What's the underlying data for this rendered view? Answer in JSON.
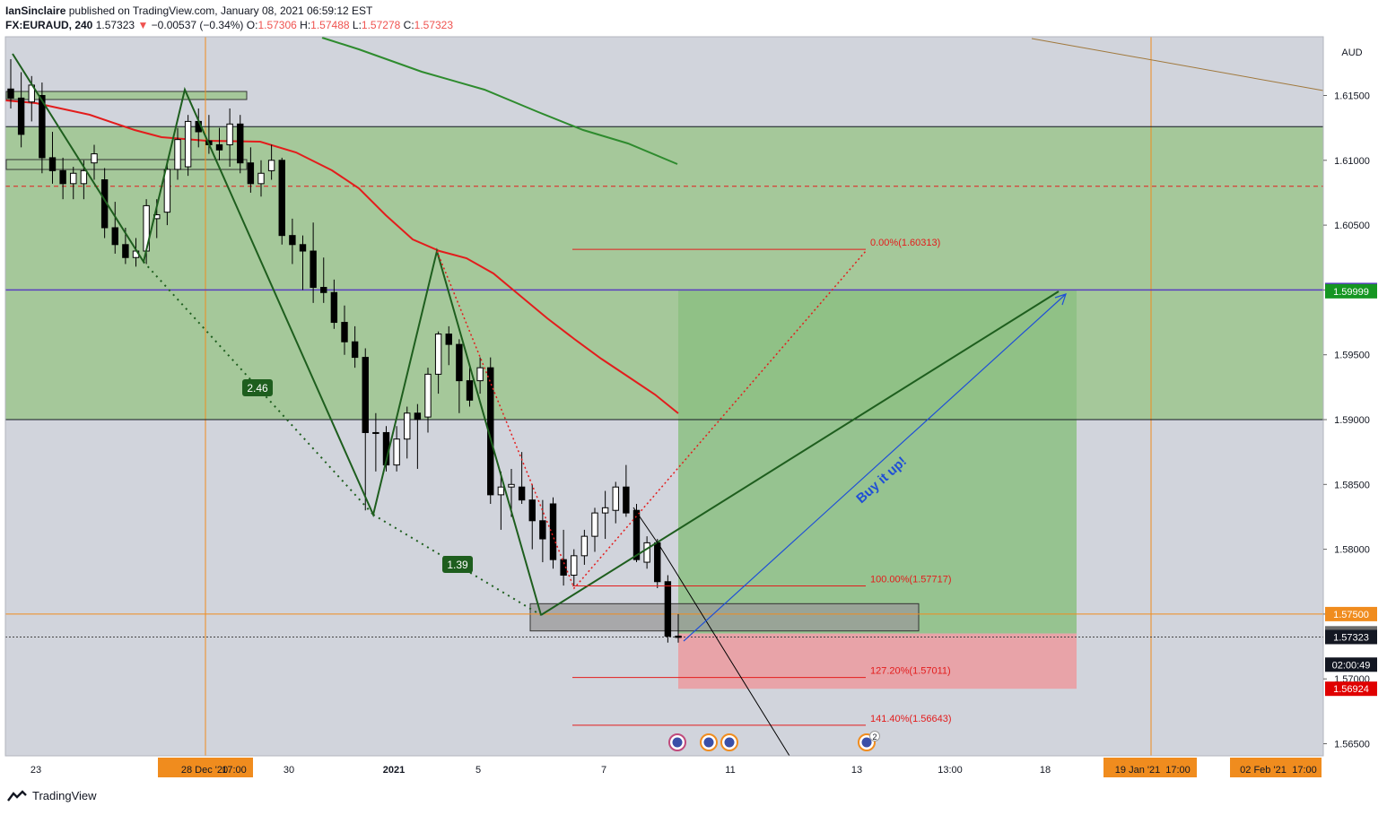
{
  "header": {
    "publisher": "IanSinclaire",
    "published_text": "published on TradingView.com, January 08, 2021 06:59:12 EST",
    "symbol": "FX:EURAUD, 240",
    "last": "1.57323",
    "change_arrow": "▼",
    "change": "−0.00537 (−0.34%)",
    "open_label": "O:",
    "open": "1.57306",
    "high_label": "H:",
    "high": "1.57488",
    "low_label": "L:",
    "low": "1.57278",
    "close_label": "C:",
    "close": "1.57323"
  },
  "footer": {
    "brand": "TradingView"
  },
  "colors": {
    "bg": "#d1d4dc",
    "zone_green": "#a5c89a",
    "target_green": "#8cbf82",
    "stop_red": "#e8a3a8",
    "ma_red": "#e31c1c",
    "ma_green": "#2e8b2e",
    "pattern": "#1e5e1e",
    "blue": "#1f4fd6",
    "orange": "#f08c1e",
    "purple": "#5a3fc0"
  },
  "chart_data": {
    "type": "candlestick",
    "symbol": "EURAUD",
    "timeframe": "240",
    "currency": "AUD",
    "price_axis": {
      "ticks": [
        "1.61500",
        "1.61000",
        "1.60500",
        "1.60000",
        "1.59500",
        "1.59000",
        "1.58500",
        "1.58000",
        "1.57500",
        "1.57000",
        "1.56500"
      ],
      "ylim": [
        1.5633,
        1.6205
      ]
    },
    "time_axis": {
      "ticks": [
        "23",
        "28 Dec '20",
        "17:00",
        "30",
        "2021",
        "5",
        "7",
        "11",
        "13",
        "13:00",
        "18",
        "19 Jan '21",
        "17:00",
        "02 Feb '21",
        "17:00"
      ]
    },
    "price_labels": [
      {
        "text": "1.60000",
        "price": 1.6,
        "color": "#5a3fc0"
      },
      {
        "text": "1.59999",
        "price": 1.5999,
        "color": "#159622"
      },
      {
        "text": "1.57500",
        "price": 1.575,
        "color": "#f08c1e"
      },
      {
        "text": "1.57352",
        "price": 1.57352,
        "color": "#6b6b6b"
      },
      {
        "text": "1.57323",
        "price": 1.57323,
        "color": "#131722"
      },
      {
        "text": "02:00:49",
        "price": 1.5711,
        "color": "#131722"
      },
      {
        "text": "1.56924",
        "price": 1.56924,
        "color": "#e00000"
      }
    ],
    "fib_levels": [
      {
        "label": "0.00%(1.60313)",
        "price": 1.60313
      },
      {
        "label": "100.00%(1.57717)",
        "price": 1.57717
      },
      {
        "label": "127.20%(1.57011)",
        "price": 1.57011
      },
      {
        "label": "141.40%(1.56643)",
        "price": 1.56643
      }
    ],
    "pattern_ratios": [
      "2.46",
      "1.39"
    ],
    "annotation": "Buy it up!",
    "event_badge_count": "2",
    "horizontal_lines": [
      {
        "price": 1.6,
        "color": "#5a3fc0"
      },
      {
        "price": 1.575,
        "color": "#f08c1e"
      },
      {
        "price": 1.608,
        "color": "#e31c1c",
        "style": "dashed"
      },
      {
        "price": 1.6126,
        "color": "#131722"
      },
      {
        "price": 1.59,
        "color": "#131722"
      }
    ],
    "zones": [
      {
        "name": "supply-demand-zone",
        "top": 1.6126,
        "bottom": 1.59,
        "color": "#a5c89a"
      },
      {
        "name": "long-target",
        "top": 1.6,
        "bottom": 1.5735,
        "color": "#8cbf82"
      },
      {
        "name": "long-stop",
        "top": 1.5735,
        "bottom": 1.56924,
        "color": "#e8a3a8"
      },
      {
        "name": "support-box",
        "top": 1.5758,
        "bottom": 1.5737,
        "color": "#9a9a9a"
      }
    ],
    "candles": [
      [
        1.6155,
        1.6178,
        1.614,
        1.6148
      ],
      [
        1.6148,
        1.6168,
        1.611,
        1.612
      ],
      [
        1.6145,
        1.6165,
        1.613,
        1.6158
      ],
      [
        1.615,
        1.616,
        1.609,
        1.6102
      ],
      [
        1.6102,
        1.6122,
        1.6082,
        1.6092
      ],
      [
        1.6092,
        1.6102,
        1.607,
        1.6082
      ],
      [
        1.6082,
        1.6095,
        1.607,
        1.609
      ],
      [
        1.6082,
        1.61,
        1.607,
        1.6092
      ],
      [
        1.6098,
        1.6112,
        1.6085,
        1.6105
      ],
      [
        1.6085,
        1.6094,
        1.604,
        1.6048
      ],
      [
        1.6048,
        1.6068,
        1.6028,
        1.6035
      ],
      [
        1.6035,
        1.6048,
        1.602,
        1.6025
      ],
      [
        1.6025,
        1.604,
        1.6018,
        1.603
      ],
      [
        1.603,
        1.607,
        1.602,
        1.6065
      ],
      [
        1.6055,
        1.607,
        1.604,
        1.6058
      ],
      [
        1.606,
        1.61,
        1.605,
        1.6093
      ],
      [
        1.6093,
        1.6125,
        1.6085,
        1.6116
      ],
      [
        1.6095,
        1.6135,
        1.6088,
        1.613
      ],
      [
        1.613,
        1.614,
        1.611,
        1.6122
      ],
      [
        1.6115,
        1.6135,
        1.6105,
        1.6112
      ],
      [
        1.6112,
        1.6125,
        1.61,
        1.6108
      ],
      [
        1.6112,
        1.614,
        1.6095,
        1.6128
      ],
      [
        1.6128,
        1.6135,
        1.609,
        1.6098
      ],
      [
        1.6098,
        1.611,
        1.6075,
        1.6082
      ],
      [
        1.6082,
        1.61,
        1.6072,
        1.609
      ],
      [
        1.6092,
        1.6112,
        1.6085,
        1.61
      ],
      [
        1.61,
        1.6102,
        1.6035,
        1.6042
      ],
      [
        1.6042,
        1.6055,
        1.602,
        1.6035
      ],
      [
        1.6035,
        1.6042,
        1.6,
        1.603
      ],
      [
        1.603,
        1.6052,
        1.599,
        1.6002
      ],
      [
        1.6002,
        1.6025,
        1.599,
        1.5998
      ],
      [
        1.5998,
        1.6008,
        1.597,
        1.5975
      ],
      [
        1.5975,
        1.5988,
        1.595,
        1.596
      ],
      [
        1.596,
        1.5972,
        1.594,
        1.5948
      ],
      [
        1.5948,
        1.5955,
        1.583,
        1.589
      ],
      [
        1.589,
        1.5905,
        1.586,
        1.589
      ],
      [
        1.589,
        1.5895,
        1.586,
        1.5865
      ],
      [
        1.5865,
        1.5895,
        1.586,
        1.5885
      ],
      [
        1.5885,
        1.591,
        1.587,
        1.5905
      ],
      [
        1.5905,
        1.5912,
        1.5862,
        1.59
      ],
      [
        1.5902,
        1.594,
        1.589,
        1.5935
      ],
      [
        1.5935,
        1.5968,
        1.592,
        1.5966
      ],
      [
        1.5966,
        1.5972,
        1.5942,
        1.5958
      ],
      [
        1.5958,
        1.5962,
        1.5905,
        1.593
      ],
      [
        1.593,
        1.594,
        1.591,
        1.5915
      ],
      [
        1.593,
        1.5948,
        1.592,
        1.594
      ],
      [
        1.594,
        1.5948,
        1.5835,
        1.5842
      ],
      [
        1.5842,
        1.586,
        1.5815,
        1.5848
      ],
      [
        1.5848,
        1.5862,
        1.5825,
        1.585
      ],
      [
        1.5848,
        1.5875,
        1.5835,
        1.5838
      ],
      [
        1.5838,
        1.585,
        1.58,
        1.5822
      ],
      [
        1.5822,
        1.5838,
        1.579,
        1.5808
      ],
      [
        1.5835,
        1.584,
        1.5785,
        1.5792
      ],
      [
        1.5792,
        1.5815,
        1.5772,
        1.578
      ],
      [
        1.578,
        1.58,
        1.5772,
        1.5795
      ],
      [
        1.5795,
        1.5815,
        1.5788,
        1.581
      ],
      [
        1.581,
        1.5832,
        1.5798,
        1.5828
      ],
      [
        1.5828,
        1.5845,
        1.5808,
        1.5832
      ],
      [
        1.583,
        1.5852,
        1.582,
        1.5848
      ],
      [
        1.5848,
        1.5865,
        1.5825,
        1.5828
      ],
      [
        1.583,
        1.5835,
        1.579,
        1.5792
      ],
      [
        1.579,
        1.581,
        1.5785,
        1.5805
      ],
      [
        1.5805,
        1.5808,
        1.577,
        1.5775
      ],
      [
        1.5775,
        1.578,
        1.5728,
        1.5733
      ],
      [
        1.5733,
        1.575,
        1.5728,
        1.5732
      ]
    ]
  }
}
